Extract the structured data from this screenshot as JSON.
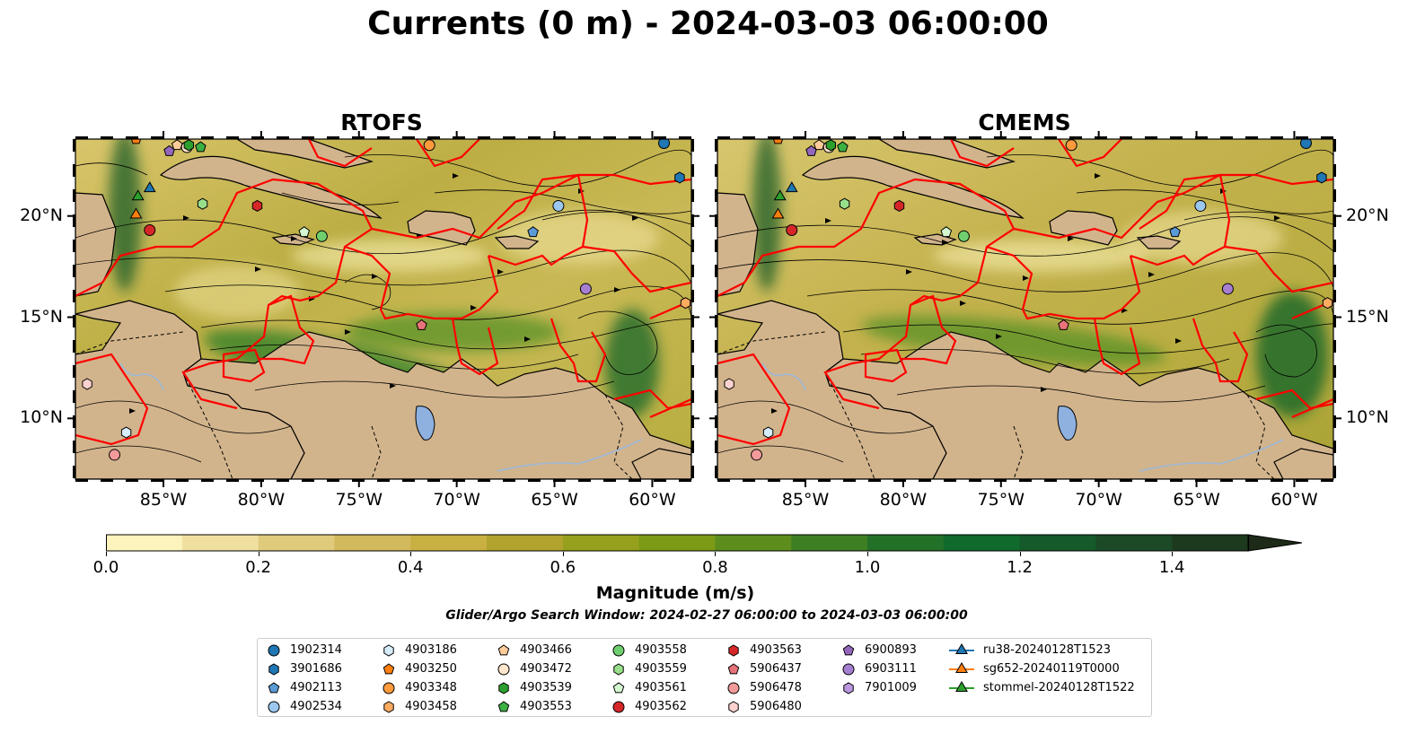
{
  "title": "Currents (0 m) - 2024-03-03 06:00:00",
  "panels": [
    {
      "title": "RTOFS"
    },
    {
      "title": "CMEMS"
    }
  ],
  "lon_ticks": [
    "85°W",
    "80°W",
    "75°W",
    "70°W",
    "65°W",
    "60°W"
  ],
  "lat_ticks": [
    "20°N",
    "15°N",
    "10°N"
  ],
  "map_extent": {
    "lon": [
      -89.5,
      -58.0
    ],
    "lat": [
      7.0,
      23.8
    ]
  },
  "colorbar": {
    "label": "Magnitude (m/s)",
    "min": 0.0,
    "max": 1.5,
    "step": 0.1,
    "extend": "max",
    "tick_labels": [
      "0.0",
      "0.2",
      "0.4",
      "0.6",
      "0.8",
      "1.0",
      "1.2",
      "1.4"
    ],
    "colors": [
      "#fdf4bd",
      "#f0e0a0",
      "#e0cb7c",
      "#d3b95d",
      "#c9b042",
      "#b1a32d",
      "#97a01d",
      "#7c9a16",
      "#5d8e1d",
      "#3f7f23",
      "#237028",
      "#0f6a2c",
      "#155a2a",
      "#1c4a26",
      "#1d3a1f"
    ]
  },
  "search_window": "Glider/Argo Search Window: 2024-02-27 06:00:00 to 2024-03-03 06:00:00",
  "colors": {
    "land": "#d2b48c",
    "lakes": "#8eb1e0",
    "rivers": "#9db8d8",
    "tracks": "#ff0000",
    "streamlines": "#000000"
  },
  "legend_columns": [
    [
      {
        "label": "1902314",
        "marker": "circle",
        "color": "#1f77b4"
      },
      {
        "label": "3901686",
        "marker": "hexagon",
        "color": "#1f77b4"
      },
      {
        "label": "4902113",
        "marker": "pentagon",
        "color": "#5b9bd5"
      },
      {
        "label": "4902534",
        "marker": "circle",
        "color": "#9cc8ef"
      }
    ],
    [
      {
        "label": "4903186",
        "marker": "hexagon",
        "color": "#d6ecfb"
      },
      {
        "label": "4903250",
        "marker": "pentagon",
        "color": "#ff7f0e"
      },
      {
        "label": "4903348",
        "marker": "circle",
        "color": "#ff9a3c"
      },
      {
        "label": "4903458",
        "marker": "hexagon",
        "color": "#ffab60"
      }
    ],
    [
      {
        "label": "4903466",
        "marker": "pentagon",
        "color": "#ffcc99"
      },
      {
        "label": "4903472",
        "marker": "circle",
        "color": "#ffe6cc"
      },
      {
        "label": "4903539",
        "marker": "hexagon",
        "color": "#2ca02c"
      },
      {
        "label": "4903553",
        "marker": "pentagon",
        "color": "#3cb043"
      }
    ],
    [
      {
        "label": "4903558",
        "marker": "circle",
        "color": "#6fcf6f"
      },
      {
        "label": "4903559",
        "marker": "hexagon",
        "color": "#98df8a"
      },
      {
        "label": "4903561",
        "marker": "pentagon",
        "color": "#d4f7cf"
      },
      {
        "label": "4903562",
        "marker": "circle",
        "color": "#d62728"
      }
    ],
    [
      {
        "label": "4903563",
        "marker": "hexagon",
        "color": "#d62728"
      },
      {
        "label": "5906437",
        "marker": "pentagon",
        "color": "#e8737a"
      },
      {
        "label": "5906478",
        "marker": "circle",
        "color": "#f29a9a"
      },
      {
        "label": "5906480",
        "marker": "hexagon",
        "color": "#fbd2cf"
      }
    ],
    [
      {
        "label": "6900893",
        "marker": "pentagon",
        "color": "#9467bd"
      },
      {
        "label": "6903111",
        "marker": "circle",
        "color": "#a67fd0"
      },
      {
        "label": "7901009",
        "marker": "hexagon",
        "color": "#bb97e2"
      }
    ],
    [
      {
        "label": "ru38-20240128T1523",
        "marker": "triangle-line",
        "color": "#1f77b4"
      },
      {
        "label": "sg652-20240119T0000",
        "marker": "triangle-line",
        "color": "#ff7f0e"
      },
      {
        "label": "stommel-20240128T1522",
        "marker": "triangle-line",
        "color": "#2ca02c"
      }
    ]
  ],
  "float_positions": [
    {
      "id": "1902314",
      "lon": -59.4,
      "lat": 23.6
    },
    {
      "id": "3901686",
      "lon": -58.6,
      "lat": 21.9
    },
    {
      "id": "4902113",
      "lon": -66.1,
      "lat": 19.2
    },
    {
      "id": "4902534",
      "lon": -64.8,
      "lat": 20.5
    },
    {
      "id": "4903186",
      "lon": -86.9,
      "lat": 9.3
    },
    {
      "id": "4903250",
      "lon": -86.4,
      "lat": 23.8
    },
    {
      "id": "4903348",
      "lon": -71.4,
      "lat": 23.5
    },
    {
      "id": "4903458",
      "lon": -58.3,
      "lat": 15.7
    },
    {
      "id": "4903466",
      "lon": -84.3,
      "lat": 23.5
    },
    {
      "id": "4903472",
      "lon": -83.8,
      "lat": 23.4
    },
    {
      "id": "4903539",
      "lon": -83.7,
      "lat": 23.5
    },
    {
      "id": "4903553",
      "lon": -83.1,
      "lat": 23.4
    },
    {
      "id": "4903558",
      "lon": -76.9,
      "lat": 19.0
    },
    {
      "id": "4903559",
      "lon": -83.0,
      "lat": 20.6
    },
    {
      "id": "4903561",
      "lon": -77.8,
      "lat": 19.2
    },
    {
      "id": "4903562",
      "lon": -85.7,
      "lat": 19.3
    },
    {
      "id": "4903563",
      "lon": -80.2,
      "lat": 20.5
    },
    {
      "id": "5906437",
      "lon": -71.8,
      "lat": 14.6
    },
    {
      "id": "5906478",
      "lon": -87.5,
      "lat": 8.2
    },
    {
      "id": "5906480",
      "lon": -88.9,
      "lat": 11.7
    },
    {
      "id": "6900893",
      "lon": -84.7,
      "lat": 23.2
    },
    {
      "id": "6903111",
      "lon": -63.4,
      "lat": 16.4
    },
    {
      "id": "ru38-20240128T1523",
      "lon": -85.7,
      "lat": 21.4
    },
    {
      "id": "sg652-20240119T0000",
      "lon": -86.4,
      "lat": 20.1
    },
    {
      "id": "stommel-20240128T1522",
      "lon": -86.3,
      "lat": 21.0
    }
  ]
}
